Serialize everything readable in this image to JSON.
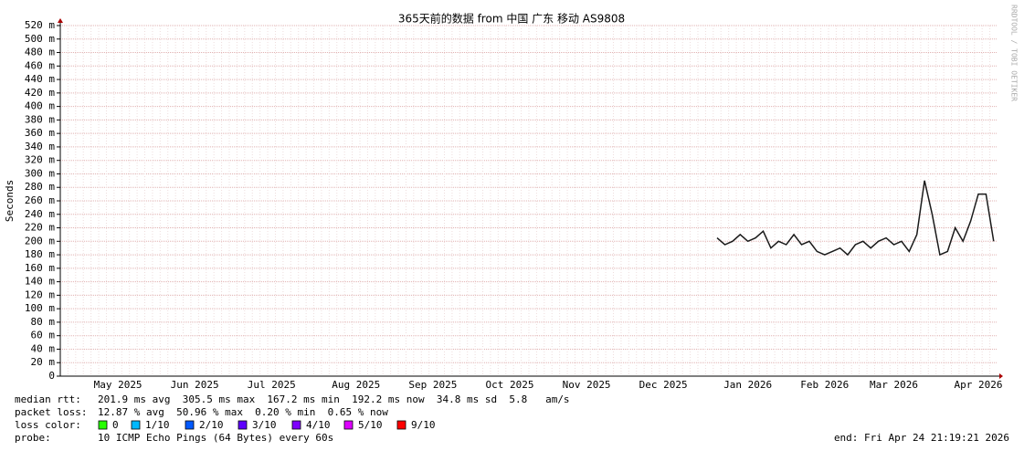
{
  "chart_data": {
    "type": "line",
    "title": "365天前的数据 from 中国 广东 移动 AS9808",
    "y_label": "Seconds",
    "watermark": "RRDTOOL / TOBI OETIKER",
    "categories": [
      null,
      null,
      null,
      null,
      null,
      null,
      null,
      "May 2025",
      null,
      null,
      null,
      null,
      null,
      null,
      null,
      null,
      null,
      "Jun 2025",
      null,
      null,
      null,
      null,
      null,
      null,
      null,
      null,
      null,
      "Jul 2025",
      null,
      null,
      null,
      null,
      null,
      null,
      null,
      null,
      null,
      null,
      "Aug 2025",
      null,
      null,
      null,
      null,
      null,
      null,
      null,
      null,
      null,
      "Sep 2025",
      null,
      null,
      null,
      null,
      null,
      null,
      null,
      null,
      null,
      "Oct 2025",
      null,
      null,
      null,
      null,
      null,
      null,
      null,
      null,
      null,
      "Nov 2025",
      null,
      null,
      null,
      null,
      null,
      null,
      null,
      null,
      null,
      "Dec 2025",
      null,
      null,
      null,
      null,
      null,
      null,
      null,
      null,
      null,
      null,
      "Jan 2026",
      null,
      null,
      null,
      null,
      null,
      null,
      null,
      null,
      null,
      "Feb 2026",
      null,
      null,
      null,
      null,
      null,
      null,
      null,
      null,
      "Mar 2026",
      null,
      null,
      null,
      null,
      null,
      null,
      null,
      null,
      null,
      null,
      "Apr 2026",
      null,
      null
    ],
    "series": [
      {
        "name": "median rtt",
        "color": "#1a1a1a",
        "values": [
          null,
          null,
          null,
          null,
          null,
          null,
          null,
          null,
          null,
          null,
          null,
          null,
          null,
          null,
          null,
          null,
          null,
          null,
          null,
          null,
          null,
          null,
          null,
          null,
          null,
          null,
          null,
          null,
          null,
          null,
          null,
          null,
          null,
          null,
          null,
          null,
          null,
          null,
          null,
          null,
          null,
          null,
          null,
          null,
          null,
          null,
          null,
          null,
          null,
          null,
          null,
          null,
          null,
          null,
          null,
          null,
          null,
          null,
          null,
          null,
          null,
          null,
          null,
          null,
          null,
          null,
          null,
          null,
          null,
          null,
          null,
          null,
          null,
          null,
          null,
          null,
          null,
          null,
          null,
          null,
          null,
          null,
          null,
          null,
          null,
          0.205,
          0.195,
          0.2,
          0.21,
          0.2,
          0.205,
          0.215,
          0.19,
          0.2,
          0.195,
          0.21,
          0.195,
          0.2,
          0.185,
          0.18,
          0.185,
          0.19,
          0.18,
          0.195,
          0.2,
          0.19,
          0.2,
          0.205,
          0.195,
          0.2,
          0.185,
          0.21,
          0.29,
          0.24,
          0.18,
          0.185,
          0.22,
          0.2,
          0.23,
          0.27,
          0.27,
          0.2
        ]
      }
    ],
    "ylim": [
      0,
      0.52
    ],
    "yticks": [
      0,
      {
        "value": 0.02,
        "label": "20 m"
      },
      {
        "value": 0.04,
        "label": "40 m"
      },
      {
        "value": 0.06,
        "label": "60 m"
      },
      {
        "value": 0.08,
        "label": "80 m"
      },
      {
        "value": 0.1,
        "label": "100 m"
      },
      {
        "value": 0.12,
        "label": "120 m"
      },
      {
        "value": 0.14,
        "label": "140 m"
      },
      {
        "value": 0.16,
        "label": "160 m"
      },
      {
        "value": 0.18,
        "label": "180 m"
      },
      {
        "value": 0.2,
        "label": "200 m"
      },
      {
        "value": 0.22,
        "label": "220 m"
      },
      {
        "value": 0.24,
        "label": "240 m"
      },
      {
        "value": 0.26,
        "label": "260 m"
      },
      {
        "value": 0.28,
        "label": "280 m"
      },
      {
        "value": 0.3,
        "label": "300 m"
      },
      {
        "value": 0.32,
        "label": "320 m"
      },
      {
        "value": 0.34,
        "label": "340 m"
      },
      {
        "value": 0.36,
        "label": "360 m"
      },
      {
        "value": 0.38,
        "label": "380 m"
      },
      {
        "value": 0.4,
        "label": "400 m"
      },
      {
        "value": 0.42,
        "label": "420 m"
      },
      {
        "value": 0.44,
        "label": "440 m"
      },
      {
        "value": 0.46,
        "label": "460 m"
      },
      {
        "value": 0.48,
        "label": "480 m"
      },
      {
        "value": 0.5,
        "label": "500 m"
      },
      {
        "value": 0.52,
        "label": "520 m"
      }
    ],
    "grid": true,
    "stats": [
      {
        "label": "median rtt:",
        "text": "201.9 ms avg  305.5 ms max  167.2 ms min  192.2 ms now  34.8 ms sd  5.8   am/s"
      },
      {
        "label": "packet loss:",
        "text": "12.87 % avg  50.96 % max  0.20 % min  0.65 % now"
      }
    ],
    "loss_color_label": "loss color:",
    "loss_colors": [
      {
        "label": "0",
        "color": "#26ff00"
      },
      {
        "label": "1/10",
        "color": "#00b8ff"
      },
      {
        "label": "2/10",
        "color": "#0059ff"
      },
      {
        "label": "3/10",
        "color": "#5e00ff"
      },
      {
        "label": "4/10",
        "color": "#7e00ff"
      },
      {
        "label": "5/10",
        "color": "#dd00ff"
      },
      {
        "label": "9/10",
        "color": "#ff0000"
      }
    ],
    "probe_label": "probe:",
    "probe": "10 ICMP Echo Pings (64 Bytes) every 60s",
    "end": "end: Fri Apr 24 21:19:21 2026"
  }
}
